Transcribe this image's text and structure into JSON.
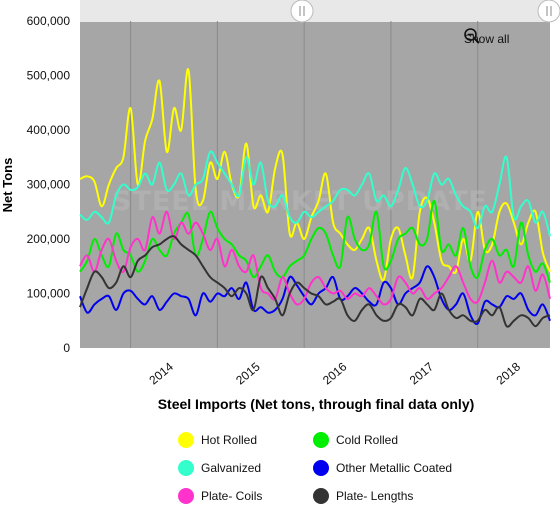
{
  "controls": {
    "show_all_label": "Show all"
  },
  "watermark": "STEEL MARKET UPDATE",
  "colors": {
    "plot_bg": "#a6a6a6",
    "navigator": "#e8e8e8",
    "hot_rolled": "#ffff00",
    "cold_rolled": "#00ee00",
    "galvanized": "#33ffcc",
    "other_metallic": "#0000ee",
    "plate_coils": "#ff33cc",
    "plate_lengths": "#333333"
  },
  "chart_data": {
    "type": "line",
    "title": "",
    "xlabel": "Steel Imports (Net tons, through final data only)",
    "ylabel": "Net Tons",
    "ylim": [
      0,
      600000
    ],
    "yticks": [
      "0",
      "100,000",
      "200,000",
      "300,000",
      "400,000",
      "500,000",
      "600,000"
    ],
    "xlim": [
      "2013-06",
      "2018-11"
    ],
    "xticks": [
      "2014",
      "2015",
      "2016",
      "2017",
      "2018"
    ],
    "x": [
      "2013-06",
      "2013-07",
      "2013-08",
      "2013-09",
      "2013-10",
      "2013-11",
      "2013-12",
      "2014-01",
      "2014-02",
      "2014-03",
      "2014-04",
      "2014-05",
      "2014-06",
      "2014-07",
      "2014-08",
      "2014-09",
      "2014-10",
      "2014-11",
      "2014-12",
      "2015-01",
      "2015-02",
      "2015-03",
      "2015-04",
      "2015-05",
      "2015-06",
      "2015-07",
      "2015-08",
      "2015-09",
      "2015-10",
      "2015-11",
      "2015-12",
      "2016-01",
      "2016-02",
      "2016-03",
      "2016-04",
      "2016-05",
      "2016-06",
      "2016-07",
      "2016-08",
      "2016-09",
      "2016-10",
      "2016-11",
      "2016-12",
      "2017-01",
      "2017-02",
      "2017-03",
      "2017-04",
      "2017-05",
      "2017-06",
      "2017-07",
      "2017-08",
      "2017-09",
      "2017-10",
      "2017-11",
      "2017-12",
      "2018-01",
      "2018-02",
      "2018-03",
      "2018-04",
      "2018-05",
      "2018-06",
      "2018-07",
      "2018-08",
      "2018-09",
      "2018-10",
      "2018-11"
    ],
    "series": [
      {
        "name": "Hot Rolled",
        "color": "#ffff00",
        "values": [
          310000,
          315000,
          305000,
          260000,
          300000,
          330000,
          350000,
          440000,
          300000,
          380000,
          420000,
          490000,
          360000,
          440000,
          400000,
          510000,
          290000,
          270000,
          340000,
          310000,
          360000,
          300000,
          280000,
          375000,
          260000,
          280000,
          250000,
          330000,
          355000,
          210000,
          230000,
          200000,
          240000,
          270000,
          320000,
          230000,
          210000,
          190000,
          180000,
          200000,
          220000,
          160000,
          125000,
          200000,
          220000,
          170000,
          130000,
          250000,
          275000,
          230000,
          160000,
          150000,
          140000,
          200000,
          160000,
          250000,
          180000,
          190000,
          250000,
          265000,
          230000,
          190000,
          230000,
          250000,
          175000,
          140000
        ]
      },
      {
        "name": "Cold Rolled",
        "color": "#00ee00",
        "values": [
          140000,
          160000,
          200000,
          170000,
          150000,
          210000,
          180000,
          170000,
          140000,
          160000,
          200000,
          180000,
          170000,
          210000,
          230000,
          245000,
          170000,
          200000,
          250000,
          220000,
          200000,
          190000,
          170000,
          160000,
          130000,
          150000,
          170000,
          140000,
          130000,
          150000,
          160000,
          170000,
          200000,
          220000,
          210000,
          170000,
          150000,
          240000,
          200000,
          180000,
          190000,
          250000,
          150000,
          160000,
          200000,
          210000,
          220000,
          190000,
          200000,
          270000,
          180000,
          190000,
          170000,
          220000,
          150000,
          130000,
          180000,
          200000,
          170000,
          180000,
          150000,
          230000,
          170000,
          140000,
          155000,
          120000
        ]
      },
      {
        "name": "Galvanized",
        "color": "#33ffcc",
        "values": [
          245000,
          235000,
          250000,
          240000,
          230000,
          280000,
          300000,
          290000,
          295000,
          320000,
          300000,
          340000,
          290000,
          300000,
          320000,
          280000,
          300000,
          310000,
          360000,
          340000,
          320000,
          300000,
          280000,
          350000,
          300000,
          340000,
          270000,
          260000,
          280000,
          240000,
          230000,
          250000,
          240000,
          250000,
          260000,
          270000,
          290000,
          290000,
          280000,
          300000,
          320000,
          270000,
          280000,
          260000,
          290000,
          330000,
          300000,
          260000,
          270000,
          320000,
          300000,
          310000,
          280000,
          260000,
          250000,
          220000,
          260000,
          250000,
          300000,
          350000,
          240000,
          260000,
          270000,
          230000,
          250000,
          205000
        ]
      },
      {
        "name": "Other Metallic Coated",
        "color": "#0000ee",
        "values": [
          95000,
          65000,
          80000,
          90000,
          95000,
          70000,
          100000,
          105000,
          90000,
          80000,
          95000,
          70000,
          85000,
          100000,
          95000,
          90000,
          60000,
          100000,
          85000,
          100000,
          95000,
          110000,
          90000,
          120000,
          70000,
          75000,
          65000,
          70000,
          90000,
          130000,
          115000,
          95000,
          80000,
          100000,
          110000,
          130000,
          90000,
          95000,
          110000,
          100000,
          85000,
          80000,
          120000,
          110000,
          80000,
          100000,
          110000,
          120000,
          150000,
          130000,
          90000,
          70000,
          80000,
          100000,
          60000,
          45000,
          85000,
          80000,
          75000,
          95000,
          90000,
          100000,
          70000,
          60000,
          80000,
          50000
        ]
      },
      {
        "name": "Plate- Coils",
        "color": "#ff33cc",
        "values": [
          150000,
          170000,
          140000,
          180000,
          200000,
          160000,
          140000,
          185000,
          200000,
          180000,
          240000,
          210000,
          250000,
          200000,
          230000,
          210000,
          230000,
          210000,
          180000,
          200000,
          150000,
          180000,
          150000,
          140000,
          170000,
          110000,
          100000,
          90000,
          130000,
          100000,
          80000,
          90000,
          120000,
          130000,
          110000,
          100000,
          105000,
          90000,
          100000,
          95000,
          110000,
          95000,
          80000,
          90000,
          130000,
          120000,
          100000,
          110000,
          90000,
          100000,
          110000,
          130000,
          150000,
          120000,
          90000,
          85000,
          120000,
          160000,
          120000,
          140000,
          130000,
          120000,
          150000,
          105000,
          135000,
          90000
        ]
      },
      {
        "name": "Plate- Lengths",
        "color": "#333333",
        "values": [
          75000,
          110000,
          140000,
          130000,
          110000,
          120000,
          150000,
          130000,
          160000,
          170000,
          185000,
          190000,
          200000,
          205000,
          190000,
          180000,
          170000,
          150000,
          130000,
          120000,
          110000,
          95000,
          110000,
          100000,
          70000,
          130000,
          110000,
          90000,
          60000,
          100000,
          120000,
          110000,
          100000,
          95000,
          80000,
          85000,
          90000,
          60000,
          50000,
          70000,
          80000,
          60000,
          50000,
          55000,
          80000,
          75000,
          60000,
          90000,
          80000,
          70000,
          100000,
          70000,
          55000,
          60000,
          50000,
          50000,
          70000,
          60000,
          75000,
          40000,
          50000,
          60000,
          55000,
          40000,
          55000,
          60000
        ]
      }
    ],
    "legend": "bottom",
    "grid": "vertical"
  }
}
